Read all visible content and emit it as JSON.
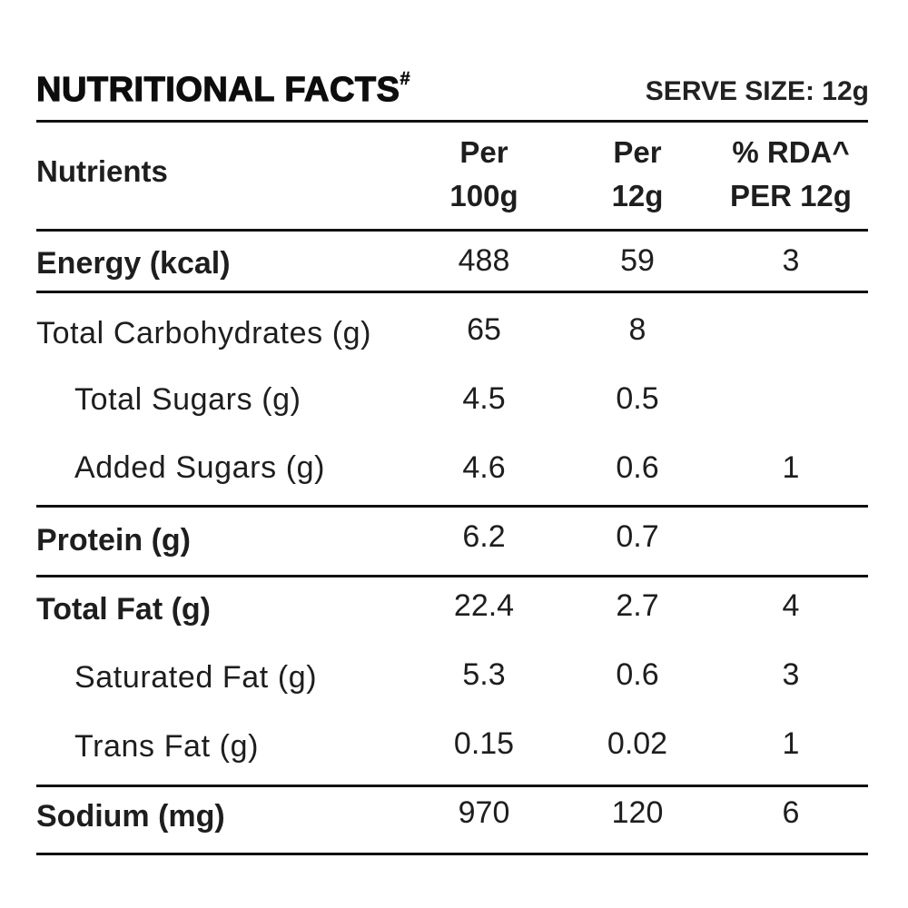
{
  "header": {
    "title": "NUTRITIONAL FACTS",
    "title_mark": "#",
    "serve_size": "SERVE SIZE: 12g"
  },
  "columns": {
    "nutrients": "Nutrients",
    "per100_line1": "Per",
    "per100_line2": "100g",
    "per12_line1": "Per",
    "per12_line2": "12g",
    "rda_line1": "% RDA^",
    "rda_line2": "PER 12g"
  },
  "rows": [
    {
      "name": "Energy (kcal)",
      "per100": "488",
      "per12": "59",
      "rda": "3"
    },
    {
      "name": "Total Carbohydrates (g)",
      "per100": "65",
      "per12": "8",
      "rda": ""
    },
    {
      "name": "Total Sugars (g)",
      "per100": "4.5",
      "per12": "0.5",
      "rda": ""
    },
    {
      "name": "Added Sugars (g)",
      "per100": "4.6",
      "per12": "0.6",
      "rda": "1"
    },
    {
      "name": "Protein (g)",
      "per100": "6.2",
      "per12": "0.7",
      "rda": ""
    },
    {
      "name": "Total Fat (g)",
      "per100": "22.4",
      "per12": "2.7",
      "rda": "4"
    },
    {
      "name": "Saturated Fat (g)",
      "per100": "5.3",
      "per12": "0.6",
      "rda": "3"
    },
    {
      "name": "Trans Fat (g)",
      "per100": "0.15",
      "per12": "0.02",
      "rda": "1"
    },
    {
      "name": "Sodium (mg)",
      "per100": "970",
      "per12": "120",
      "rda": "6"
    }
  ]
}
